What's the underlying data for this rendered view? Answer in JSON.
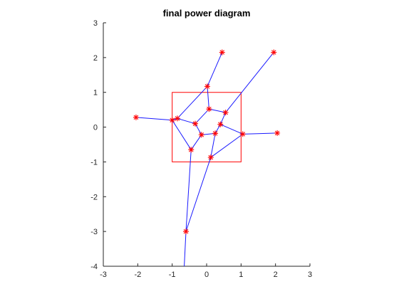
{
  "chart_data": {
    "type": "line",
    "title": "final power diagram",
    "xlabel": "",
    "ylabel": "",
    "xlim": [
      -3,
      3
    ],
    "ylim": [
      -4,
      3
    ],
    "x_ticks": [
      -3,
      -2,
      -1,
      0,
      1,
      2,
      3
    ],
    "y_ticks": [
      -4,
      -3,
      -2,
      -1,
      0,
      1,
      2,
      3
    ],
    "x_tick_labels": [
      "-3",
      "-2",
      "-1",
      "0",
      "1",
      "2",
      "3"
    ],
    "y_tick_labels": [
      "-4",
      "-3",
      "-2",
      "-1",
      "0",
      "1",
      "2",
      "3"
    ],
    "grid": false,
    "box": {
      "corners": [
        [
          -1,
          -1
        ],
        [
          1,
          -1
        ],
        [
          1,
          1
        ],
        [
          -1,
          1
        ]
      ],
      "color": "#ff0000"
    },
    "vertices": [
      {
        "id": "A",
        "x": -2.05,
        "y": 0.28
      },
      {
        "id": "B",
        "x": -1.0,
        "y": 0.2
      },
      {
        "id": "C",
        "x": -0.85,
        "y": 0.25
      },
      {
        "id": "D",
        "x": 0.02,
        "y": 1.17
      },
      {
        "id": "E",
        "x": 0.45,
        "y": 2.15
      },
      {
        "id": "F",
        "x": 1.95,
        "y": 2.15
      },
      {
        "id": "G",
        "x": 0.07,
        "y": 0.52
      },
      {
        "id": "H",
        "x": 0.55,
        "y": 0.42
      },
      {
        "id": "I",
        "x": -0.33,
        "y": 0.1
      },
      {
        "id": "J",
        "x": 0.4,
        "y": 0.08
      },
      {
        "id": "K",
        "x": -0.15,
        "y": -0.22
      },
      {
        "id": "L",
        "x": 0.25,
        "y": -0.18
      },
      {
        "id": "M",
        "x": 1.05,
        "y": -0.2
      },
      {
        "id": "N",
        "x": 2.05,
        "y": -0.17
      },
      {
        "id": "O",
        "x": -0.45,
        "y": -0.65
      },
      {
        "id": "P",
        "x": 0.12,
        "y": -0.87
      },
      {
        "id": "Q",
        "x": -0.6,
        "y": -3.0
      }
    ],
    "open_end": {
      "x": -0.65,
      "y": -4.0
    },
    "edges": [
      [
        "A",
        "B"
      ],
      [
        "B",
        "C"
      ],
      [
        "C",
        "D"
      ],
      [
        "D",
        "E"
      ],
      [
        "C",
        "I"
      ],
      [
        "D",
        "G"
      ],
      [
        "G",
        "H"
      ],
      [
        "H",
        "F"
      ],
      [
        "G",
        "I"
      ],
      [
        "I",
        "K"
      ],
      [
        "K",
        "L"
      ],
      [
        "L",
        "J"
      ],
      [
        "J",
        "H"
      ],
      [
        "J",
        "M"
      ],
      [
        "M",
        "N"
      ],
      [
        "K",
        "O"
      ],
      [
        "B",
        "O"
      ],
      [
        "L",
        "P"
      ],
      [
        "M",
        "P"
      ],
      [
        "P",
        "Q"
      ],
      [
        "O",
        "Q"
      ],
      [
        "Q",
        "END"
      ]
    ],
    "colors": {
      "edge": "#1a1aff",
      "marker": "#ff0000",
      "axis": "#262626"
    }
  }
}
